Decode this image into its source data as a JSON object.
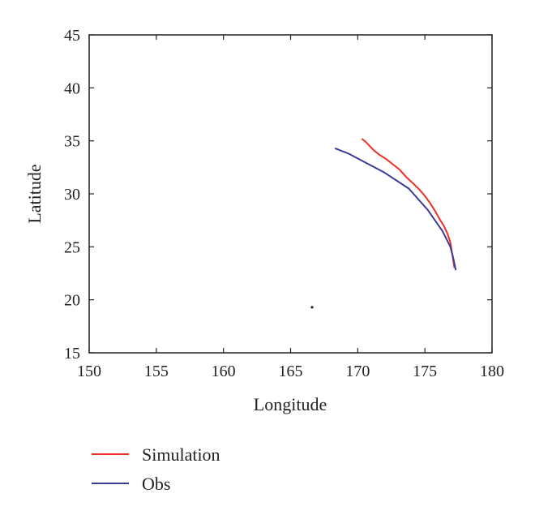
{
  "chart_data": {
    "type": "line",
    "title": "",
    "xlabel": "Longitude",
    "ylabel": "Latitude",
    "xlim": [
      150,
      180
    ],
    "ylim": [
      15,
      45
    ],
    "xticks": [
      "150",
      "155",
      "160",
      "165",
      "170",
      "175",
      "180"
    ],
    "yticks": [
      "15",
      "20",
      "25",
      "30",
      "35",
      "40",
      "45"
    ],
    "grid": false,
    "legend_placement": "bottom-left",
    "series": [
      {
        "name": "Simulation",
        "color": "#ee2e24",
        "points": [
          [
            170.3,
            35.2
          ],
          [
            170.6,
            34.9
          ],
          [
            170.9,
            34.5
          ],
          [
            171.2,
            34.1
          ],
          [
            171.6,
            33.7
          ],
          [
            172.1,
            33.3
          ],
          [
            172.6,
            32.8
          ],
          [
            173.1,
            32.3
          ],
          [
            173.6,
            31.6
          ],
          [
            174.1,
            31.0
          ],
          [
            174.6,
            30.4
          ],
          [
            175.0,
            29.8
          ],
          [
            175.4,
            29.1
          ],
          [
            175.8,
            28.3
          ],
          [
            176.1,
            27.6
          ],
          [
            176.4,
            27.0
          ],
          [
            176.7,
            26.2
          ],
          [
            176.9,
            25.4
          ],
          [
            177.0,
            24.6
          ],
          [
            177.1,
            23.8
          ],
          [
            177.2,
            23.0
          ]
        ]
      },
      {
        "name": "Obs",
        "color": "#3b3b96",
        "points": [
          [
            168.3,
            34.3
          ],
          [
            169.3,
            33.8
          ],
          [
            170.5,
            33.0
          ],
          [
            172.0,
            32.0
          ],
          [
            173.8,
            30.5
          ],
          [
            175.2,
            28.5
          ],
          [
            176.3,
            26.5
          ],
          [
            176.9,
            25.0
          ],
          [
            177.1,
            24.0
          ],
          [
            177.3,
            22.8
          ]
        ]
      },
      {
        "name": "",
        "color": "#231f20",
        "points": [
          [
            166.6,
            19.3
          ]
        ]
      }
    ]
  }
}
